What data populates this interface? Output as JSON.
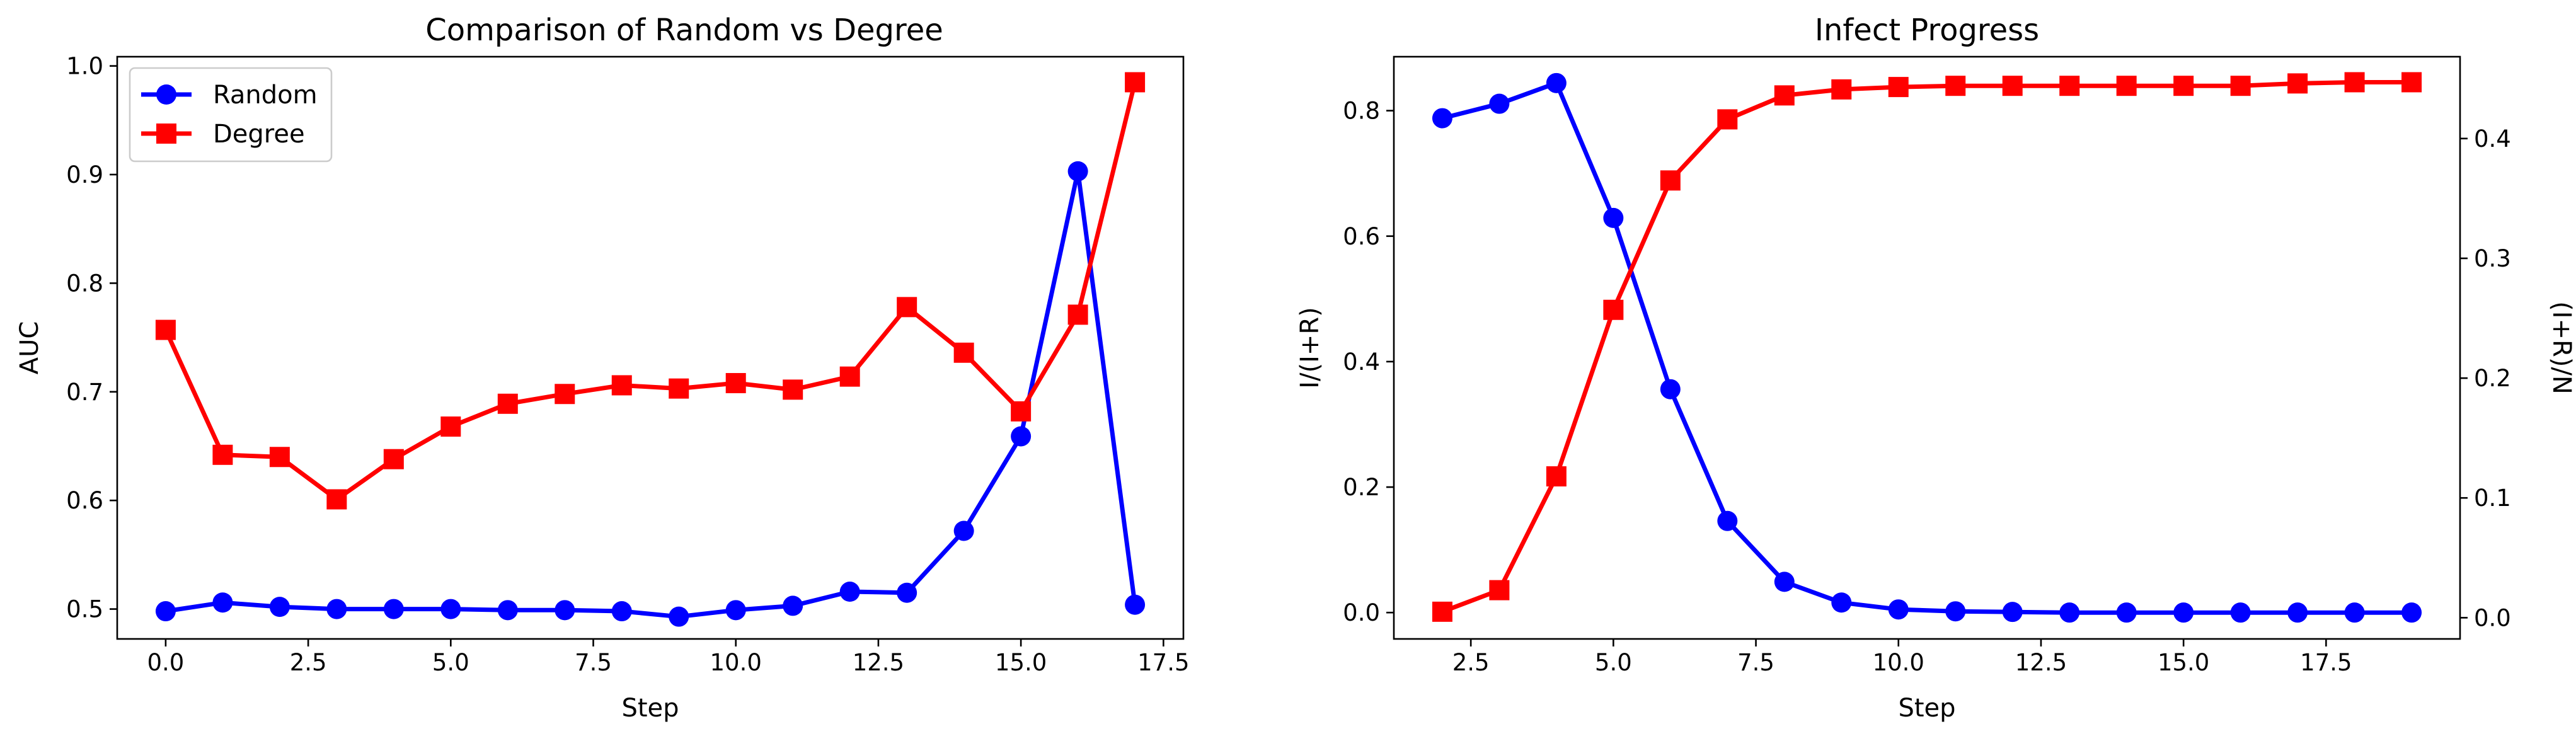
{
  "chart_data": [
    {
      "type": "line",
      "title": "Comparison of Random vs Degree",
      "xlabel": "Step",
      "ylabel": "AUC",
      "xlim": [
        -0.85,
        17.85
      ],
      "ylim": [
        0.4725,
        1.0085
      ],
      "xticks": [
        0.0,
        2.5,
        5.0,
        7.5,
        10.0,
        12.5,
        15.0,
        17.5
      ],
      "xtick_labels": [
        "0.0",
        "2.5",
        "5.0",
        "7.5",
        "10.0",
        "12.5",
        "15.0",
        "17.5"
      ],
      "yticks": [
        0.5,
        0.6,
        0.7,
        0.8,
        0.9,
        1.0
      ],
      "ytick_labels": [
        "0.5",
        "0.6",
        "0.7",
        "0.8",
        "0.9",
        "1.0"
      ],
      "legend": "top-left",
      "grid": false,
      "x": [
        0,
        1,
        2,
        3,
        4,
        5,
        6,
        7,
        8,
        9,
        10,
        11,
        12,
        13,
        14,
        15,
        16,
        17
      ],
      "series": [
        {
          "name": "Random",
          "color": "#0000ff",
          "marker": "circle",
          "values": [
            0.498,
            0.506,
            0.502,
            0.5,
            0.5,
            0.5,
            0.499,
            0.499,
            0.498,
            0.493,
            0.499,
            0.503,
            0.516,
            0.515,
            0.572,
            0.659,
            0.903,
            0.504
          ]
        },
        {
          "name": "Degree",
          "color": "#ff0000",
          "marker": "square",
          "values": [
            0.757,
            0.642,
            0.64,
            0.601,
            0.638,
            0.668,
            0.689,
            0.698,
            0.706,
            0.703,
            0.708,
            0.702,
            0.714,
            0.778,
            0.736,
            0.682,
            0.771,
            0.985
          ]
        }
      ]
    },
    {
      "type": "line",
      "title": "Infect Progress",
      "xlabel": "Step",
      "ylabel_left": "I/(I+R)",
      "ylabel_right": "(I+R)/N",
      "left_color": "#0000ff",
      "right_color": "#ff0000",
      "xlim": [
        1.15,
        19.85
      ],
      "ylim_left": [
        -0.042,
        0.886
      ],
      "ylim_right": [
        -0.0177,
        0.4683
      ],
      "xticks": [
        2.5,
        5.0,
        7.5,
        10.0,
        12.5,
        15.0,
        17.5
      ],
      "xtick_labels": [
        "2.5",
        "5.0",
        "7.5",
        "10.0",
        "12.5",
        "15.0",
        "17.5"
      ],
      "yticks_left": [
        0.0,
        0.2,
        0.4,
        0.6,
        0.8
      ],
      "ytick_labels_left": [
        "0.0",
        "0.2",
        "0.4",
        "0.6",
        "0.8"
      ],
      "yticks_right": [
        0.0,
        0.1,
        0.2,
        0.3,
        0.4
      ],
      "ytick_labels_right": [
        "0.0",
        "0.1",
        "0.2",
        "0.3",
        "0.4"
      ],
      "grid": false,
      "x": [
        2,
        3,
        4,
        5,
        6,
        7,
        8,
        9,
        10,
        11,
        12,
        13,
        14,
        15,
        16,
        17,
        18,
        19
      ],
      "series": [
        {
          "axis": "left",
          "color": "#0000ff",
          "marker": "circle",
          "values": [
            0.788,
            0.811,
            0.844,
            0.629,
            0.356,
            0.146,
            0.049,
            0.016,
            0.005,
            0.002,
            0.001,
            0.0,
            0.0,
            0.0,
            0.0,
            0.0,
            0.0,
            0.0
          ]
        },
        {
          "axis": "right",
          "color": "#ff0000",
          "marker": "square",
          "values": [
            0.005,
            0.023,
            0.118,
            0.257,
            0.365,
            0.416,
            0.436,
            0.441,
            0.443,
            0.444,
            0.444,
            0.444,
            0.444,
            0.444,
            0.444,
            0.446,
            0.447,
            0.447
          ]
        }
      ]
    }
  ]
}
